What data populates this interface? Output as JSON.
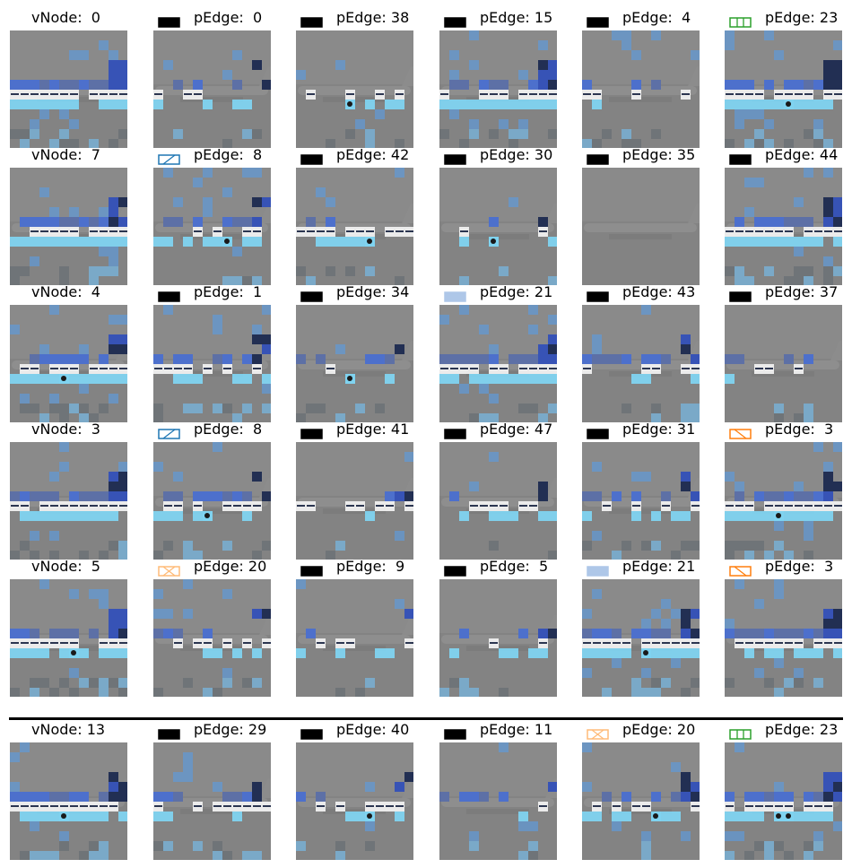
{
  "rows": [
    [
      {
        "kind": "vNode",
        "label": "vNode:",
        "value": "0",
        "swatch": null,
        "seed": 11,
        "density": "high"
      },
      {
        "kind": "pEdge",
        "label": "pEdge:",
        "value": "0",
        "swatch": "solid-black",
        "seed": 12,
        "density": "low"
      },
      {
        "kind": "pEdge",
        "label": "pEdge:",
        "value": "38",
        "swatch": "solid-black",
        "seed": 13,
        "density": "low"
      },
      {
        "kind": "pEdge",
        "label": "pEdge:",
        "value": "15",
        "swatch": "solid-black",
        "seed": 14,
        "density": "high"
      },
      {
        "kind": "pEdge",
        "label": "pEdge:",
        "value": "4",
        "swatch": "solid-black",
        "seed": 15,
        "density": "low"
      },
      {
        "kind": "pEdge",
        "label": "pEdge:",
        "value": "23",
        "swatch": "green-vbars",
        "seed": 16,
        "density": "high"
      }
    ],
    [
      {
        "kind": "vNode",
        "label": "vNode:",
        "value": "7",
        "swatch": null,
        "seed": 21,
        "density": "high"
      },
      {
        "kind": "pEdge",
        "label": "pEdge:",
        "value": "8",
        "swatch": "blue-slash",
        "seed": 22,
        "density": "mid"
      },
      {
        "kind": "pEdge",
        "label": "pEdge:",
        "value": "42",
        "swatch": "solid-black",
        "seed": 23,
        "density": "mid"
      },
      {
        "kind": "pEdge",
        "label": "pEdge:",
        "value": "30",
        "swatch": "solid-black",
        "seed": 24,
        "density": "low"
      },
      {
        "kind": "pEdge",
        "label": "pEdge:",
        "value": "35",
        "swatch": "solid-black",
        "seed": 25,
        "density": "none"
      },
      {
        "kind": "pEdge",
        "label": "pEdge:",
        "value": "44",
        "swatch": "solid-black",
        "seed": 26,
        "density": "high"
      }
    ],
    [
      {
        "kind": "vNode",
        "label": "vNode:",
        "value": "4",
        "swatch": null,
        "seed": 31,
        "density": "high"
      },
      {
        "kind": "pEdge",
        "label": "pEdge:",
        "value": "1",
        "swatch": "solid-black",
        "seed": 32,
        "density": "mid"
      },
      {
        "kind": "pEdge",
        "label": "pEdge:",
        "value": "34",
        "swatch": "solid-black",
        "seed": 33,
        "density": "low"
      },
      {
        "kind": "pEdge",
        "label": "pEdge:",
        "value": "21",
        "swatch": "light-blue",
        "seed": 34,
        "density": "high"
      },
      {
        "kind": "pEdge",
        "label": "pEdge:",
        "value": "43",
        "swatch": "solid-black",
        "seed": 35,
        "density": "mid"
      },
      {
        "kind": "pEdge",
        "label": "pEdge:",
        "value": "37",
        "swatch": "solid-black",
        "seed": 36,
        "density": "low"
      }
    ],
    [
      {
        "kind": "vNode",
        "label": "vNode:",
        "value": "3",
        "swatch": null,
        "seed": 41,
        "density": "high"
      },
      {
        "kind": "pEdge",
        "label": "pEdge:",
        "value": "8",
        "swatch": "blue-slash",
        "seed": 42,
        "density": "mid"
      },
      {
        "kind": "pEdge",
        "label": "pEdge:",
        "value": "41",
        "swatch": "solid-black",
        "seed": 43,
        "density": "low"
      },
      {
        "kind": "pEdge",
        "label": "pEdge:",
        "value": "47",
        "swatch": "solid-black",
        "seed": 44,
        "density": "low"
      },
      {
        "kind": "pEdge",
        "label": "pEdge:",
        "value": "31",
        "swatch": "solid-black",
        "seed": 45,
        "density": "mid"
      },
      {
        "kind": "pEdge",
        "label": "pEdge:",
        "value": "3",
        "swatch": "orange-backslash",
        "seed": 46,
        "density": "high"
      }
    ],
    [
      {
        "kind": "vNode",
        "label": "vNode:",
        "value": "5",
        "swatch": null,
        "seed": 51,
        "density": "high"
      },
      {
        "kind": "pEdge",
        "label": "pEdge:",
        "value": "20",
        "swatch": "peach-cross",
        "seed": 52,
        "density": "mid"
      },
      {
        "kind": "pEdge",
        "label": "pEdge:",
        "value": "9",
        "swatch": "solid-black",
        "seed": 53,
        "density": "low"
      },
      {
        "kind": "pEdge",
        "label": "pEdge:",
        "value": "5",
        "swatch": "solid-black",
        "seed": 54,
        "density": "low"
      },
      {
        "kind": "pEdge",
        "label": "pEdge:",
        "value": "21",
        "swatch": "light-blue",
        "seed": 55,
        "density": "high"
      },
      {
        "kind": "pEdge",
        "label": "pEdge:",
        "value": "3",
        "swatch": "orange-backslash",
        "seed": 56,
        "density": "high"
      }
    ],
    [
      {
        "kind": "vNode",
        "label": "vNode:",
        "value": "13",
        "swatch": null,
        "seed": 61,
        "density": "high"
      },
      {
        "kind": "pEdge",
        "label": "pEdge:",
        "value": "29",
        "swatch": "solid-black",
        "seed": 62,
        "density": "mid"
      },
      {
        "kind": "pEdge",
        "label": "pEdge:",
        "value": "40",
        "swatch": "solid-black",
        "seed": 63,
        "density": "low"
      },
      {
        "kind": "pEdge",
        "label": "pEdge:",
        "value": "11",
        "swatch": "solid-black",
        "seed": 64,
        "density": "low"
      },
      {
        "kind": "pEdge",
        "label": "pEdge:",
        "value": "20",
        "swatch": "peach-cross",
        "seed": 65,
        "density": "mid"
      },
      {
        "kind": "pEdge",
        "label": "pEdge:",
        "value": "23",
        "swatch": "green-vbars",
        "seed": 66,
        "density": "high"
      }
    ]
  ],
  "swatch_styles": {
    "solid-black": {
      "fill": "#000000",
      "stroke": "#000000",
      "hatch": "none"
    },
    "light-blue": {
      "fill": "#aec7e8",
      "stroke": "#aec7e8",
      "hatch": "none"
    },
    "blue-slash": {
      "fill": "none",
      "stroke": "#1f77b4",
      "hatch": "slash"
    },
    "green-vbars": {
      "fill": "none",
      "stroke": "#2ca02c",
      "hatch": "vbars"
    },
    "orange-backslash": {
      "fill": "none",
      "stroke": "#ff7f0e",
      "hatch": "backslash"
    },
    "peach-cross": {
      "fill": "none",
      "stroke": "#ffbb78",
      "hatch": "cross"
    }
  },
  "colors": {
    "background_gray": "#838383",
    "sky_gray": "#8a8a8a",
    "fuselage_white": "#f0f0f0",
    "tail_blue": "#3350b8",
    "patch_light_blue": "#7fd3f0",
    "patch_blue": "#4a6fd0",
    "ground_gray": "#6f7478"
  }
}
